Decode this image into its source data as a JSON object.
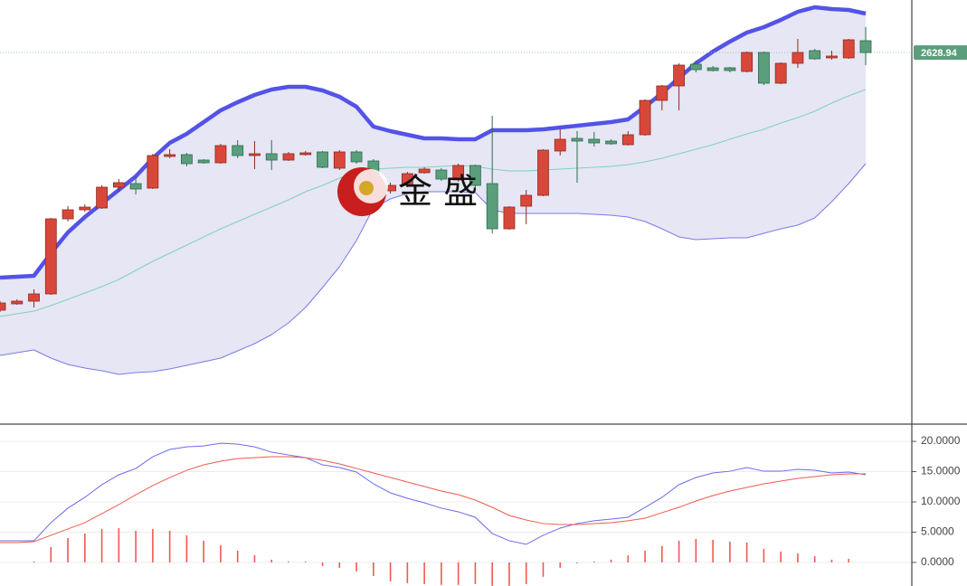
{
  "chart_data": [
    {
      "type": "candlestick",
      "ylim": [
        2424,
        2658
      ],
      "open": [
        2486.5,
        2490,
        2491.5,
        2495.5,
        2537,
        2542,
        2543,
        2554.5,
        2556.5,
        2554,
        2571.5,
        2572.5,
        2569.5,
        2568,
        2577.5,
        2572,
        2573,
        2569.5,
        2572.5,
        2574,
        2565,
        2574,
        2569,
        2552.5,
        2555.5,
        2562.5,
        2564,
        2558.5,
        2566.5,
        2556.5,
        2531.5,
        2544,
        2550,
        2574.5,
        2581.5,
        2581,
        2580,
        2578,
        2583.5,
        2602.5,
        2610.5,
        2622.5,
        2620.5,
        2620.5,
        2618.5,
        2629,
        2612,
        2623,
        2630,
        2626,
        2626,
        2635.5
      ],
      "high": [
        2491.5,
        2492.5,
        2498,
        2537.5,
        2544,
        2545,
        2555.5,
        2559,
        2560.5,
        2573,
        2575.5,
        2573.5,
        2570,
        2578.5,
        2580.5,
        2580,
        2580.5,
        2574,
        2574.5,
        2574.5,
        2575,
        2575,
        2570,
        2557,
        2563,
        2565.5,
        2565,
        2567.5,
        2567,
        2594,
        2544,
        2553,
        2575.5,
        2586.5,
        2585.5,
        2585,
        2581,
        2585.5,
        2603,
        2611,
        2623,
        2624.5,
        2621.5,
        2621,
        2629.5,
        2629.5,
        2623.5,
        2636.5,
        2631,
        2630,
        2636.5,
        2643
      ],
      "low": [
        2485.5,
        2489.5,
        2488,
        2495,
        2535.5,
        2541,
        2542.5,
        2552,
        2550.5,
        2553.5,
        2570.5,
        2566,
        2567.5,
        2567.5,
        2570.5,
        2564.5,
        2564,
        2569,
        2572,
        2565,
        2564,
        2567.5,
        2548,
        2551,
        2554.5,
        2562,
        2558,
        2557.5,
        2554,
        2529,
        2531,
        2534,
        2549.5,
        2572,
        2557,
        2577,
        2578,
        2577.5,
        2583,
        2597,
        2597,
        2618,
        2618.5,
        2618,
        2618,
        2611,
        2611.5,
        2620.5,
        2625,
        2625,
        2625.5,
        2622
      ],
      "close": [
        2490.5,
        2491.5,
        2495.5,
        2537,
        2542,
        2543.5,
        2554.5,
        2557,
        2553.5,
        2572,
        2572.5,
        2567.5,
        2568,
        2577.5,
        2572,
        2573,
        2569.5,
        2573,
        2573.5,
        2565.5,
        2574,
        2568.5,
        2550.5,
        2555.5,
        2562,
        2564.5,
        2559,
        2566.5,
        2555.5,
        2531.5,
        2543.5,
        2550,
        2575,
        2581,
        2580,
        2579,
        2578.5,
        2583.5,
        2602.5,
        2610.5,
        2622,
        2619.5,
        2619,
        2619,
        2629,
        2612,
        2623,
        2629,
        2625.5,
        2627,
        2636,
        2628.94
      ],
      "up_color": "#d8483a",
      "down_color": "#5a9e7c",
      "series": [
        {
          "color": "#5353e8",
          "values": [
            2504.5,
            2505,
            2505.5,
            2518,
            2529.5,
            2538,
            2545.5,
            2553,
            2560.5,
            2570.5,
            2579,
            2584,
            2590.5,
            2597,
            2601.5,
            2605.5,
            2608.5,
            2610,
            2610,
            2608,
            2604.5,
            2599,
            2588,
            2585.5,
            2583.5,
            2581.5,
            2581.5,
            2581,
            2581,
            2586,
            2586,
            2586,
            2586.5,
            2587.5,
            2588.5,
            2589.5,
            2590.5,
            2592,
            2599,
            2606.5,
            2615,
            2623,
            2629.5,
            2635,
            2640,
            2643,
            2647,
            2651.5,
            2654,
            2653,
            2652.5,
            2650.5
          ]
        },
        {
          "color": "#7fd3bd",
          "values": [
            2483,
            2484.5,
            2486,
            2489,
            2492.5,
            2496,
            2499.5,
            2503.5,
            2508.5,
            2513.5,
            2518,
            2522.5,
            2527,
            2531.5,
            2535.5,
            2539.5,
            2543.5,
            2547.5,
            2552,
            2555.5,
            2559.5,
            2563,
            2564.5,
            2565,
            2565.5,
            2565.5,
            2566,
            2566.5,
            2566,
            2564.5,
            2563.5,
            2563.5,
            2564,
            2564.5,
            2565,
            2565.5,
            2566,
            2567,
            2568.5,
            2570.5,
            2573,
            2575.5,
            2578,
            2581,
            2584,
            2586.5,
            2590,
            2593,
            2596.5,
            2601,
            2605,
            2608.5
          ]
        },
        {
          "color": "#7a7ae6",
          "values": [
            2461.5,
            2463,
            2464.5,
            2460,
            2456.5,
            2454.5,
            2453,
            2451,
            2452,
            2452.5,
            2454,
            2456,
            2458,
            2460,
            2464,
            2468,
            2473,
            2479.5,
            2488,
            2499,
            2510.5,
            2525,
            2543,
            2548,
            2551,
            2552,
            2552,
            2552,
            2551.5,
            2542,
            2540,
            2540,
            2540,
            2540,
            2540,
            2539.5,
            2539,
            2538,
            2535.5,
            2531.5,
            2527,
            2525.5,
            2526,
            2526.5,
            2526.5,
            2529,
            2531.5,
            2533.5,
            2537.5,
            2546.5,
            2556.5,
            2567.5
          ]
        }
      ],
      "band_color": "#e6e6f4",
      "last_price": 2628.94,
      "last_price_color": "#5a9e7c",
      "watermark": "金 盛"
    },
    {
      "type": "macd",
      "ylim": [
        -3.9,
        22.7
      ],
      "yticks": [
        {
          "value": 0,
          "label": "0.0000"
        },
        {
          "value": 5,
          "label": "5.0000"
        },
        {
          "value": 10,
          "label": "10.0000"
        },
        {
          "value": 15,
          "label": "15.0000"
        },
        {
          "value": 20,
          "label": "20.0000"
        }
      ],
      "grid": true,
      "series": [
        {
          "color": "#6b6bea",
          "values": [
            3.58,
            3.58,
            3.58,
            6.57,
            8.96,
            10.75,
            12.84,
            14.48,
            15.52,
            17.46,
            18.66,
            19.1,
            19.25,
            19.7,
            19.55,
            19.1,
            18.21,
            17.76,
            17.31,
            16.12,
            15.67,
            14.93,
            12.99,
            11.49,
            10.6,
            9.85,
            8.96,
            8.36,
            7.46,
            4.78,
            3.58,
            2.99,
            4.48,
            5.67,
            6.42,
            6.87,
            7.16,
            7.46,
            9.1,
            10.75,
            12.84,
            14.03,
            14.78,
            15.07,
            15.67,
            15.07,
            15.07,
            15.37,
            15.22,
            14.78,
            14.93,
            14.48
          ]
        },
        {
          "color": "#ee5a4f",
          "values": [
            3.28,
            3.28,
            3.43,
            4.48,
            5.52,
            6.57,
            8.06,
            9.55,
            11.19,
            12.69,
            14.03,
            15.22,
            16.12,
            16.72,
            17.16,
            17.31,
            17.46,
            17.46,
            17.31,
            16.87,
            16.27,
            15.52,
            14.78,
            14.03,
            13.28,
            12.54,
            11.79,
            11.19,
            10.3,
            9.1,
            7.76,
            7.01,
            6.42,
            6.27,
            6.27,
            6.42,
            6.57,
            6.87,
            7.31,
            8.21,
            9.1,
            10.15,
            11.04,
            11.79,
            12.39,
            12.99,
            13.43,
            13.88,
            14.18,
            14.48,
            14.63,
            14.63
          ]
        }
      ],
      "histogram": {
        "color": "#ee5a4f",
        "values": [
          0,
          0,
          0.15,
          2.54,
          4.03,
          4.78,
          5.52,
          5.67,
          5.22,
          5.52,
          5.22,
          4.48,
          3.58,
          2.84,
          1.94,
          1.19,
          0.45,
          0.15,
          0.15,
          -0.6,
          -0.9,
          -1.49,
          -2.24,
          -3.13,
          -3.43,
          -3.58,
          -3.73,
          -3.73,
          -3.58,
          -3.88,
          -3.88,
          -3.58,
          -2.39,
          -0.9,
          -0.15,
          0.15,
          0.45,
          1.19,
          1.94,
          2.69,
          3.58,
          3.88,
          3.73,
          3.43,
          3.28,
          2.24,
          1.79,
          1.49,
          1.04,
          0.45,
          0.6,
          0
        ]
      }
    }
  ]
}
